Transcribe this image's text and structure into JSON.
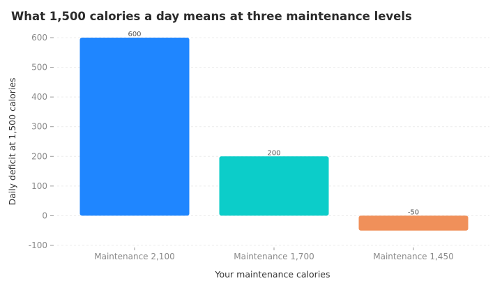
{
  "chart_data": {
    "type": "bar",
    "title": "What 1,500 calories a day means at three maintenance levels",
    "xlabel": "Your maintenance calories",
    "ylabel": "Daily deficit at 1,500 calories",
    "categories": [
      "Maintenance 2,100",
      "Maintenance 1,700",
      "Maintenance 1,450"
    ],
    "values": [
      600,
      200,
      -50
    ],
    "colors": [
      "#1f86ff",
      "#0ccdc9",
      "#f0905a"
    ],
    "ylim": [
      -100,
      600
    ],
    "yticks": [
      -100,
      0,
      100,
      200,
      300,
      400,
      500,
      600
    ],
    "grid": true,
    "legend": "none"
  }
}
